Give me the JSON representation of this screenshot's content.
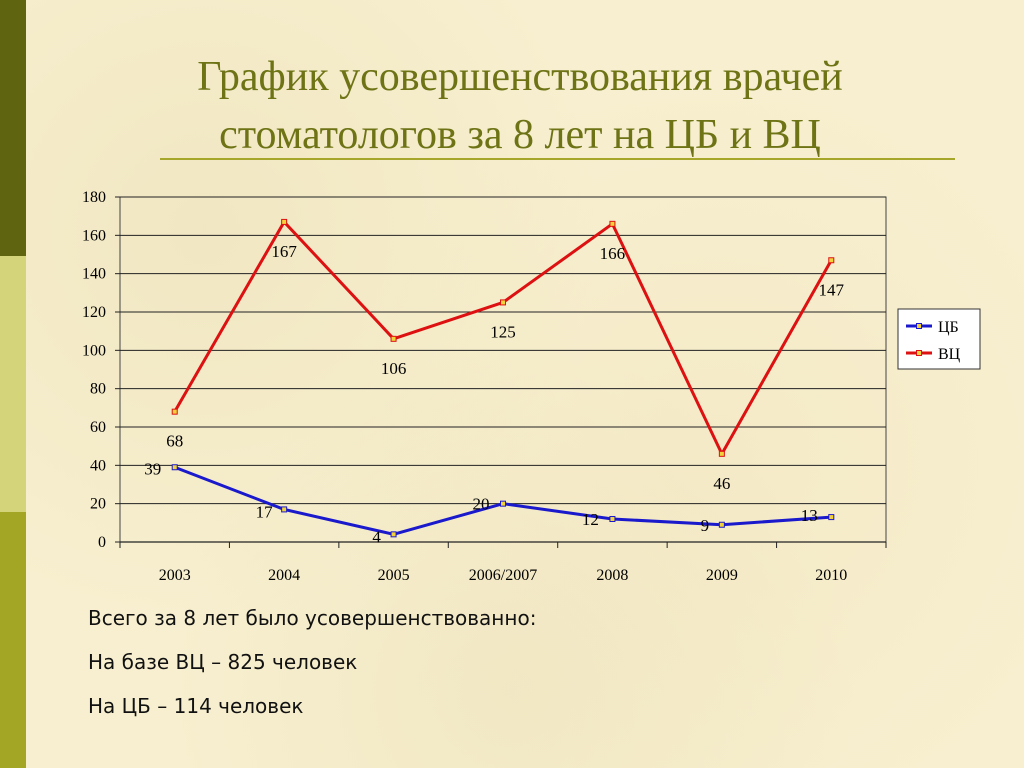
{
  "slide": {
    "title_line1": "График усовершенствования врачей",
    "title_line2": "стоматологов за 8 лет на ЦБ и ВЦ",
    "colors": {
      "title": "#6e7416",
      "rule": "#a6a62b",
      "background": "#f7efcf",
      "bar_dark": "#5f6411",
      "bar_light": "#d4d47a",
      "bar_mid": "#a3a524"
    }
  },
  "chart_data": {
    "type": "line",
    "categories": [
      "2003",
      "2004",
      "2005",
      "2006/2007",
      "2008",
      "2009",
      "2010"
    ],
    "series": [
      {
        "name": "ЦБ",
        "color": "#1a1acc",
        "values": [
          39,
          17,
          4,
          20,
          12,
          9,
          13
        ]
      },
      {
        "name": "ВЦ",
        "color": "#dd1111",
        "values": [
          68,
          167,
          106,
          125,
          166,
          46,
          147
        ]
      }
    ],
    "ylim": [
      0,
      180
    ],
    "yticks": [
      0,
      20,
      40,
      60,
      80,
      100,
      120,
      140,
      160,
      180
    ],
    "grid": true,
    "legend": "right",
    "data_labels": true
  },
  "summary": {
    "line1": "Всего за 8 лет было усовершенствованно:",
    "line2": "На базе ВЦ – 825 человек",
    "line3": "На ЦБ – 114 человек"
  }
}
